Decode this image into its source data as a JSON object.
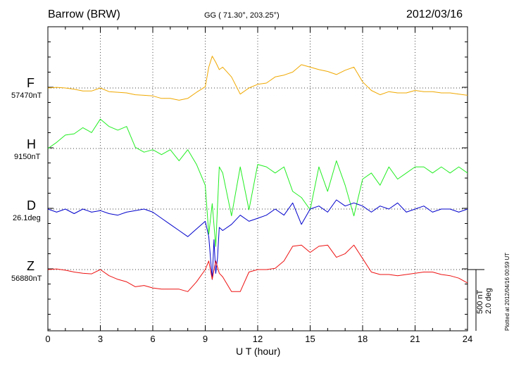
{
  "header": {
    "station": "Barrow (BRW)",
    "coords": "GG ( 71.30°, 203.25°)",
    "date": "2012/03/16"
  },
  "components": [
    {
      "letter": "F",
      "base": "57470nT",
      "color": "#f0a800"
    },
    {
      "letter": "H",
      "base": "9150nT",
      "color": "#22ee22"
    },
    {
      "letter": "D",
      "base": "26.1deg",
      "color": "#0000cc"
    },
    {
      "letter": "Z",
      "base": "56880nT",
      "color": "#ee1111"
    }
  ],
  "scale": {
    "nt": "500 nT",
    "deg": "2.0 deg"
  },
  "footer": {
    "plotted": "Plotted at 2012/04/16 00:59 UT"
  },
  "chart_data": {
    "type": "line",
    "xlabel": "U T (hour)",
    "xlim": [
      0,
      24
    ],
    "xticks": [
      "0",
      "3",
      "6",
      "9",
      "12",
      "15",
      "18",
      "21",
      "24"
    ],
    "grid": true,
    "y_units": "nT (F, H, Z); deg (D)",
    "series": [
      {
        "name": "F",
        "baseline": 57470,
        "x": [
          0,
          0.5,
          1,
          1.5,
          2,
          2.5,
          3,
          3.5,
          4,
          4.5,
          5,
          5.5,
          6,
          6.5,
          7,
          7.5,
          8,
          8.5,
          9,
          9.2,
          9.4,
          9.6,
          9.8,
          10,
          10.5,
          11,
          11.5,
          12,
          12.5,
          13,
          13.5,
          14,
          14.5,
          15,
          15.5,
          16,
          16.5,
          17,
          17.5,
          18,
          18.5,
          19,
          19.5,
          20,
          20.5,
          21,
          21.5,
          22,
          22.5,
          23,
          23.5,
          24
        ],
        "y": [
          57470,
          57475,
          57470,
          57460,
          57445,
          57445,
          57470,
          57440,
          57435,
          57430,
          57415,
          57410,
          57405,
          57385,
          57385,
          57370,
          57385,
          57435,
          57480,
          57640,
          57730,
          57680,
          57620,
          57640,
          57560,
          57420,
          57470,
          57500,
          57510,
          57560,
          57575,
          57600,
          57660,
          57640,
          57620,
          57605,
          57580,
          57615,
          57640,
          57520,
          57450,
          57415,
          57440,
          57430,
          57430,
          57450,
          57440,
          57440,
          57430,
          57430,
          57420,
          57410
        ]
      },
      {
        "name": "H",
        "baseline": 9150,
        "x": [
          0,
          0.5,
          1,
          1.5,
          2,
          2.5,
          3,
          3.5,
          4,
          4.5,
          5,
          5.5,
          6,
          6.5,
          7,
          7.5,
          8,
          8.5,
          9,
          9.2,
          9.4,
          9.6,
          9.8,
          10,
          10.5,
          11,
          11.5,
          12,
          12.5,
          13,
          13.5,
          14,
          14.5,
          15,
          15.5,
          16,
          16.5,
          17,
          17.5,
          18,
          18.5,
          19,
          19.5,
          20,
          20.5,
          21,
          21.5,
          22,
          22.5,
          23,
          23.5,
          24
        ],
        "y": [
          9150,
          9200,
          9260,
          9270,
          9320,
          9280,
          9390,
          9330,
          9300,
          9330,
          9160,
          9120,
          9140,
          9100,
          9140,
          9050,
          9140,
          9020,
          8850,
          8450,
          8700,
          8350,
          9000,
          8950,
          8600,
          9000,
          8650,
          9020,
          9000,
          8950,
          9000,
          8800,
          8750,
          8650,
          9000,
          8800,
          9050,
          8850,
          8600,
          8900,
          8950,
          8850,
          9000,
          8900,
          8950,
          9000,
          9000,
          8950,
          9000,
          8950,
          9000,
          8950
        ]
      },
      {
        "name": "D",
        "baseline": 26.1,
        "x": [
          0,
          0.5,
          1,
          1.5,
          2,
          2.5,
          3,
          3.5,
          4,
          4.5,
          5,
          5.5,
          6,
          6.5,
          7,
          7.5,
          8,
          8.5,
          9,
          9.2,
          9.4,
          9.5,
          9.6,
          9.7,
          9.8,
          10,
          10.5,
          11,
          11.5,
          12,
          12.5,
          13,
          13.5,
          14,
          14.5,
          15,
          15.5,
          16,
          16.5,
          17,
          17.5,
          18,
          18.5,
          19,
          19.5,
          20,
          20.5,
          21,
          21.5,
          22,
          22.5,
          23,
          23.5,
          24
        ],
        "y": [
          26.1,
          26.0,
          26.1,
          25.95,
          26.1,
          26.0,
          26.05,
          25.95,
          25.9,
          26.0,
          26.05,
          26.1,
          26.0,
          25.8,
          25.6,
          25.4,
          25.2,
          25.45,
          25.7,
          25.2,
          23.8,
          25.1,
          24.0,
          24.5,
          25.5,
          25.4,
          25.6,
          25.9,
          25.7,
          25.8,
          25.9,
          26.1,
          25.9,
          26.3,
          25.6,
          26.1,
          26.2,
          26.0,
          26.4,
          26.2,
          26.3,
          26.2,
          26.0,
          26.2,
          26.1,
          26.3,
          26.0,
          26.1,
          26.2,
          26.0,
          26.1,
          26.1,
          26.0,
          26.1
        ]
      },
      {
        "name": "Z",
        "baseline": 56880,
        "x": [
          0,
          0.5,
          1,
          1.5,
          2,
          2.5,
          3,
          3.5,
          4,
          4.5,
          5,
          5.5,
          6,
          6.5,
          7,
          7.5,
          8,
          8.5,
          9,
          9.2,
          9.4,
          9.6,
          9.8,
          10,
          10.5,
          11,
          11.5,
          12,
          12.5,
          13,
          13.5,
          14,
          14.5,
          15,
          15.5,
          16,
          16.5,
          17,
          17.5,
          18,
          18.5,
          19,
          19.5,
          20,
          20.5,
          21,
          21.5,
          22,
          22.5,
          23,
          23.5,
          24
        ],
        "y": [
          56880,
          56885,
          56875,
          56860,
          56850,
          56845,
          56880,
          56830,
          56800,
          56780,
          56740,
          56750,
          56730,
          56720,
          56720,
          56720,
          56700,
          56780,
          56880,
          56950,
          56800,
          56950,
          56850,
          56820,
          56700,
          56700,
          56860,
          56880,
          56880,
          56890,
          56950,
          57070,
          57080,
          57020,
          57070,
          57080,
          56980,
          57010,
          57080,
          56970,
          56860,
          56840,
          56840,
          56830,
          56840,
          56850,
          56860,
          56860,
          56840,
          56830,
          56810,
          56770
        ]
      }
    ]
  }
}
